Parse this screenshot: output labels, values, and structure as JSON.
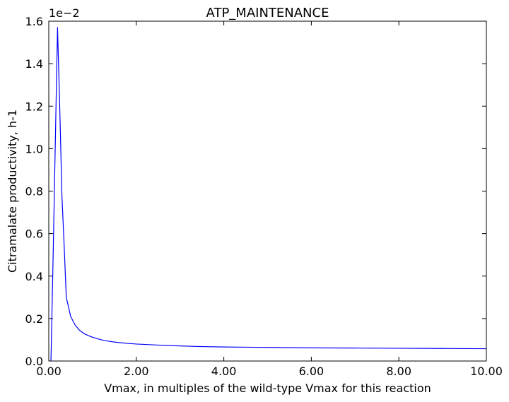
{
  "chart_data": {
    "type": "line",
    "title": "ATP_MAINTENANCE",
    "xlabel": "Vmax, in multiples of the wild-type Vmax for this reaction",
    "ylabel": "Citramalate productivity, h-1",
    "y_offset_label": "1e−2",
    "xlim": [
      0,
      10
    ],
    "ylim": [
      0,
      1.6
    ],
    "x_ticks": [
      0,
      2,
      4,
      6,
      8,
      10
    ],
    "x_tick_labels": [
      "0.00",
      "2.00",
      "4.00",
      "6.00",
      "8.00",
      "10.00"
    ],
    "y_ticks": [
      0,
      0.2,
      0.4,
      0.6,
      0.8,
      1.0,
      1.2,
      1.4,
      1.6
    ],
    "y_tick_labels": [
      "0.0",
      "0.2",
      "0.4",
      "0.6",
      "0.8",
      "1.0",
      "1.2",
      "1.4",
      "1.6"
    ],
    "grid": false,
    "series": [
      {
        "color": "#0000ff",
        "x": [
          0.05,
          0.1,
          0.2,
          0.25,
          0.3,
          0.35,
          0.4,
          0.5,
          0.6,
          0.7,
          0.8,
          0.9,
          1.0,
          1.2,
          1.4,
          1.6,
          1.8,
          2.0,
          2.5,
          3.0,
          3.5,
          4.0,
          4.5,
          5.0,
          6.0,
          7.0,
          8.0,
          9.0,
          10.0
        ],
        "values": [
          0.0,
          0.5,
          1.57,
          1.2,
          0.78,
          0.55,
          0.3,
          0.21,
          0.17,
          0.145,
          0.13,
          0.12,
          0.112,
          0.1,
          0.092,
          0.087,
          0.083,
          0.08,
          0.075,
          0.071,
          0.068,
          0.066,
          0.065,
          0.064,
          0.062,
          0.061,
          0.06,
          0.059,
          0.058
        ]
      }
    ]
  }
}
